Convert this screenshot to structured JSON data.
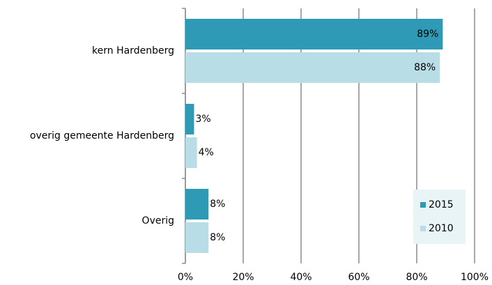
{
  "chart_data": {
    "type": "bar",
    "orientation": "horizontal",
    "categories": [
      "kern Hardenberg",
      "overig gemeente Hardenberg",
      "Overig"
    ],
    "series": [
      {
        "name": "2015",
        "color": "#2e9ab5",
        "values": [
          89,
          3,
          8
        ],
        "value_labels": [
          "89%",
          "3%",
          "8%"
        ]
      },
      {
        "name": "2010",
        "color": "#b8dde6",
        "values": [
          88,
          4,
          8
        ],
        "value_labels": [
          "88%",
          "4%",
          "8%"
        ]
      }
    ],
    "xlim": [
      0,
      100
    ],
    "xticks": [
      {
        "value": 0,
        "label": "0%"
      },
      {
        "value": 20,
        "label": "20%"
      },
      {
        "value": 40,
        "label": "40%"
      },
      {
        "value": 60,
        "label": "60%"
      },
      {
        "value": 80,
        "label": "80%"
      },
      {
        "value": 100,
        "label": "100%"
      }
    ],
    "grid": true,
    "legend": "lower right"
  }
}
